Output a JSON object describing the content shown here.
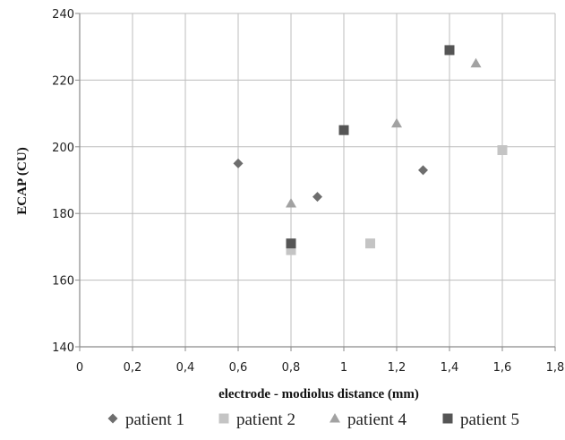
{
  "chart_data": {
    "type": "scatter",
    "title": "",
    "xlabel": "electrode - modiolus distance (mm)",
    "ylabel": "ECAP (CU)",
    "xlim": [
      0,
      1.8
    ],
    "ylim": [
      140,
      240
    ],
    "x_ticks": [
      0,
      0.2,
      0.4,
      0.6,
      0.8,
      1.0,
      1.2,
      1.4,
      1.6,
      1.8
    ],
    "x_tick_labels": [
      "0",
      "0,2",
      "0,4",
      "0,6",
      "0,8",
      "1",
      "1,2",
      "1,4",
      "1,6",
      "1,8"
    ],
    "y_ticks": [
      140,
      160,
      180,
      200,
      220,
      240
    ],
    "y_tick_labels": [
      "140",
      "160",
      "180",
      "200",
      "220",
      "240"
    ],
    "grid": true,
    "legend_position": "bottom",
    "series": [
      {
        "name": "patient 1",
        "marker": "diamond",
        "color": "#6e6e6e",
        "points": [
          [
            0.6,
            195
          ],
          [
            0.9,
            185
          ],
          [
            1.3,
            193
          ]
        ]
      },
      {
        "name": "patient 2",
        "marker": "square",
        "color": "#c4c4c4",
        "points": [
          [
            0.8,
            169
          ],
          [
            1.1,
            171
          ],
          [
            1.6,
            199
          ]
        ]
      },
      {
        "name": "patient 4",
        "marker": "triangle",
        "color": "#a2a2a2",
        "points": [
          [
            0.8,
            183
          ],
          [
            1.2,
            207
          ],
          [
            1.5,
            225
          ]
        ]
      },
      {
        "name": "patient 5",
        "marker": "square",
        "color": "#555555",
        "points": [
          [
            0.8,
            171
          ],
          [
            1.0,
            205
          ],
          [
            1.4,
            229
          ]
        ]
      }
    ]
  }
}
